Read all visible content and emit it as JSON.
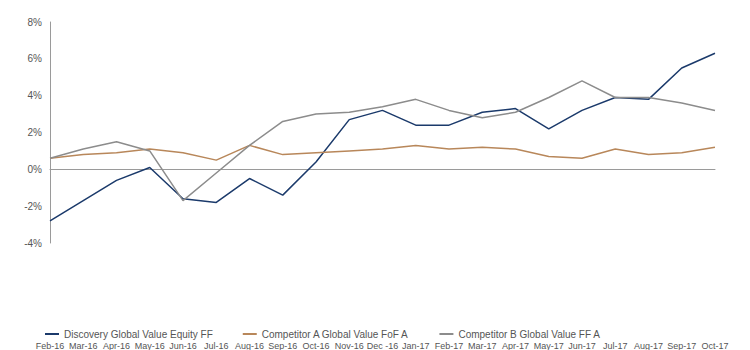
{
  "chart_data": {
    "type": "line",
    "categories": [
      "Feb-16",
      "Mar-16",
      "Apr-16",
      "May-16",
      "Jun-16",
      "Jul-16",
      "Aug-16",
      "Sep-16",
      "Oct-16",
      "Nov-16",
      "Dec -16",
      "Jan-17",
      "Feb-17",
      "Mar-17",
      "Apr-17",
      "May-17",
      "Jun-17",
      "Jul-17",
      "Aug-17",
      "Sep-17",
      "Oct-17"
    ],
    "series": [
      {
        "name": "Discovery Global Value Equity FF",
        "color": "#1b3a6b",
        "values": [
          -2.8,
          -1.7,
          -0.6,
          0.1,
          -1.6,
          -1.8,
          -0.5,
          -1.4,
          0.4,
          2.7,
          3.2,
          2.4,
          2.4,
          3.1,
          3.3,
          2.2,
          3.2,
          3.9,
          3.8,
          5.5,
          6.3
        ]
      },
      {
        "name": "Competitor A Global Value FoF A",
        "color": "#b8875a",
        "values": [
          0.6,
          0.8,
          0.9,
          1.1,
          0.9,
          0.5,
          1.3,
          0.8,
          0.9,
          1.0,
          1.1,
          1.3,
          1.1,
          1.2,
          1.1,
          0.7,
          0.6,
          1.1,
          0.8,
          0.9,
          1.2
        ]
      },
      {
        "name": "Competitor B Global Value FF A",
        "color": "#8c8c8c",
        "values": [
          0.6,
          1.1,
          1.5,
          1.0,
          -1.7,
          -0.2,
          1.3,
          2.6,
          3.0,
          3.1,
          3.4,
          3.8,
          3.2,
          2.8,
          3.1,
          3.9,
          4.8,
          3.9,
          3.9,
          3.6,
          3.2
        ]
      }
    ],
    "ylim": [
      -4,
      8
    ],
    "yticks": [
      {
        "value": -4,
        "label": "-4%"
      },
      {
        "value": -2,
        "label": "-2%"
      },
      {
        "value": 0,
        "label": "0%"
      },
      {
        "value": 2,
        "label": "2%"
      },
      {
        "value": 4,
        "label": "4%"
      },
      {
        "value": 6,
        "label": "6%"
      },
      {
        "value": 8,
        "label": "8%"
      }
    ],
    "grid": false,
    "legend": "bottom"
  }
}
